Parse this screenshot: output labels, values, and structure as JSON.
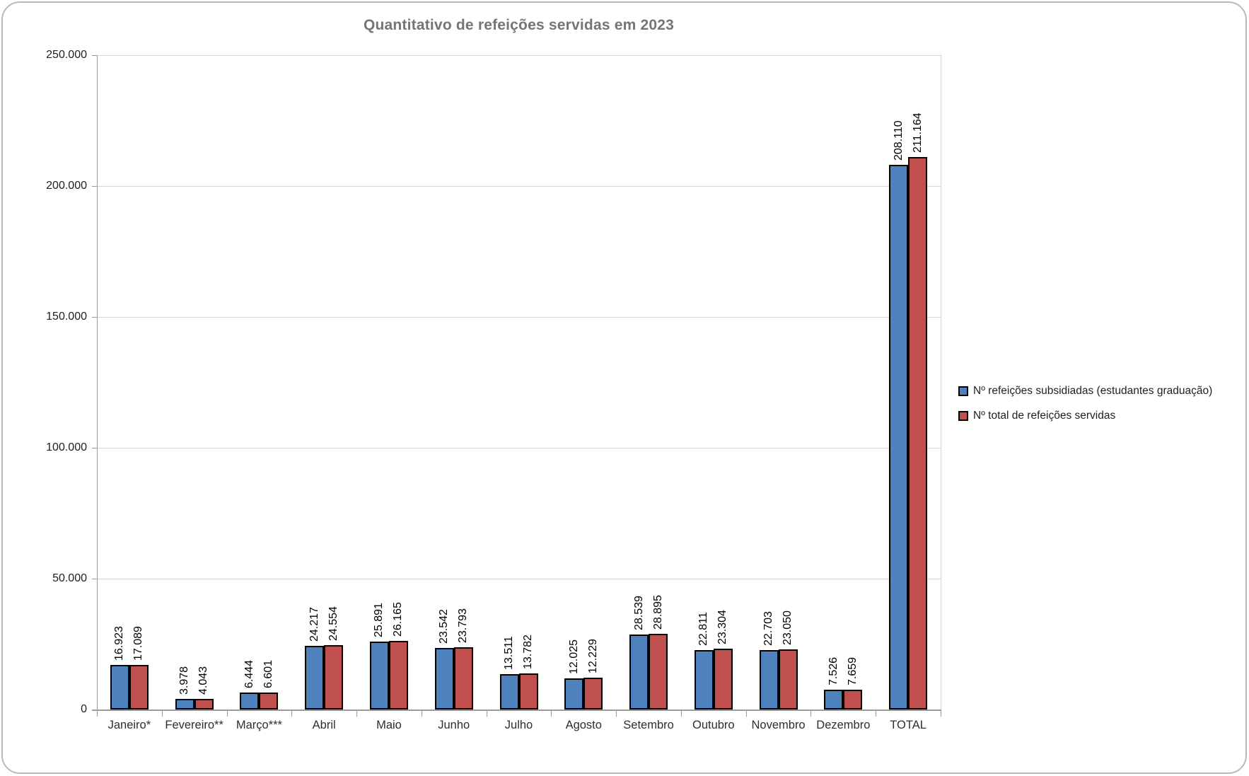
{
  "chart_data": {
    "type": "bar",
    "title": "Quantitativo de refeições servidas em 2023",
    "categories": [
      "Janeiro*",
      "Fevereiro**",
      "Março***",
      "Abril",
      "Maio",
      "Junho",
      "Julho",
      "Agosto",
      "Setembro",
      "Outubro",
      "Novembro",
      "Dezembro",
      "TOTAL"
    ],
    "series": [
      {
        "name": "Nº refeições subsidiadas (estudantes graduação)",
        "color": "#4F81BD",
        "values": [
          16923,
          3978,
          6444,
          24217,
          25891,
          23542,
          13511,
          12025,
          28539,
          22811,
          22703,
          7526,
          208110
        ],
        "labels": [
          "16.923",
          "3.978",
          "6.444",
          "24.217",
          "25.891",
          "23.542",
          "13.511",
          "12.025",
          "28.539",
          "22.811",
          "22.703",
          "7.526",
          "208.110"
        ]
      },
      {
        "name": "Nº total de refeições servidas",
        "color": "#C0504D",
        "values": [
          17089,
          4043,
          6601,
          24554,
          26165,
          23793,
          13782,
          12229,
          28895,
          23304,
          23050,
          7659,
          211164
        ],
        "labels": [
          "17.089",
          "4.043",
          "6.601",
          "24.554",
          "26.165",
          "23.793",
          "13.782",
          "12.229",
          "28.895",
          "23.304",
          "23.050",
          "7.659",
          "211.164"
        ]
      }
    ],
    "y_axis": {
      "min": 0,
      "max": 250000,
      "step": 50000,
      "tick_labels": [
        "0",
        "50.000",
        "100.000",
        "150.000",
        "200.000",
        "250.000"
      ]
    },
    "legend_position": "right",
    "grid": "horizontal",
    "data_label_rotation": "vertical",
    "bar_border_color": "#000000"
  }
}
